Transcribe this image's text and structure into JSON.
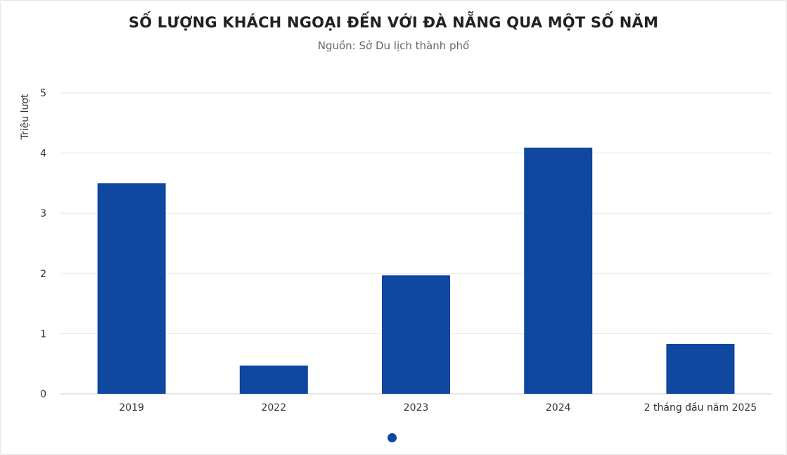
{
  "chart_data": {
    "type": "bar",
    "title": "SỐ LƯỢNG KHÁCH NGOẠI ĐẾN VỚI ĐÀ NẴNG QUA MỘT SỐ NĂM",
    "subtitle": "Nguồn: Sở Du lịch thành phố",
    "xlabel": "",
    "ylabel": "Triệu lượt",
    "categories": [
      "2019",
      "2022",
      "2023",
      "2024",
      "2 tháng đầu năm 2025"
    ],
    "values": [
      3.5,
      0.47,
      1.97,
      4.09,
      0.83
    ],
    "ylim": [
      0,
      5
    ],
    "yticks": [
      "0",
      "1",
      "2",
      "3",
      "4",
      "5"
    ],
    "grid": true,
    "legend": "none",
    "bar_color": "#0f47a1"
  },
  "pager": {
    "dot_color": "#0f47a1"
  }
}
